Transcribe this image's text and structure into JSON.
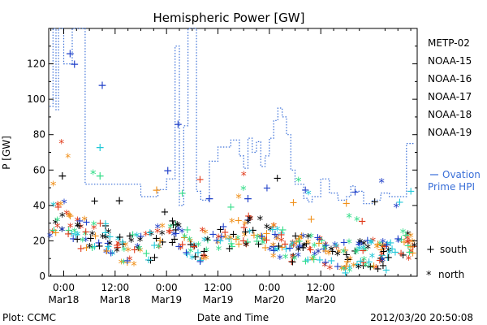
{
  "chart_data": {
    "type": "scatter",
    "title": "Hemispheric Power [GW]",
    "ylabel": "P [GW]",
    "xlabel": "Date and Time",
    "ylim": [
      0,
      140
    ],
    "xlim_hours_from_mar18": [
      -3.5,
      82.5
    ],
    "yticks": [
      0,
      20,
      40,
      60,
      80,
      100,
      120
    ],
    "xticks": [
      {
        "h": 0,
        "time": "0:00",
        "date": "Mar18"
      },
      {
        "h": 12,
        "time": "12:00",
        "date": "Mar18"
      },
      {
        "h": 24,
        "time": "0:00",
        "date": "Mar19"
      },
      {
        "h": 36,
        "time": "12:00",
        "date": "Mar19"
      },
      {
        "h": 48,
        "time": "0:00",
        "date": "Mar20"
      },
      {
        "h": 60,
        "time": "12:00",
        "date": "Mar20"
      }
    ],
    "legend_position": "right",
    "series": [
      {
        "name": "METP-02",
        "color": "#000000"
      },
      {
        "name": "NOAA-15",
        "color": "#1f3fc8"
      },
      {
        "name": "NOAA-16",
        "color": "#22c8d8"
      },
      {
        "name": "NOAA-17",
        "color": "#33dd88"
      },
      {
        "name": "NOAA-18",
        "color": "#f0901a"
      },
      {
        "name": "NOAA-19",
        "color": "#e03a1a"
      }
    ],
    "ovation": {
      "label_line1": "Ovation",
      "label_line2": "Prime HPI",
      "color": "#3a6fd8",
      "h": [
        -3.3,
        -2.5,
        -2.5,
        -1.8,
        -1.8,
        -1.2,
        -1.2,
        0,
        0,
        2,
        2,
        5,
        5,
        18,
        18,
        22,
        22,
        24,
        24,
        26,
        26,
        27,
        27,
        28,
        28,
        29,
        29,
        31,
        31,
        32,
        32,
        34,
        34,
        36,
        36,
        39,
        39,
        41,
        41,
        42,
        42,
        43,
        43,
        44,
        44,
        45,
        45,
        46,
        46,
        47,
        47,
        48,
        48,
        49,
        49,
        50,
        50,
        51,
        51,
        52,
        52,
        53,
        53,
        54,
        54,
        56,
        56,
        57,
        57,
        58,
        58,
        60,
        60,
        62,
        62,
        64,
        64,
        66,
        66,
        67,
        67,
        68,
        68,
        70,
        70,
        72,
        72,
        74,
        74,
        76,
        76,
        80,
        80,
        82
      ],
      "p": [
        96,
        96,
        140,
        140,
        94,
        94,
        140,
        140,
        120,
        120,
        140,
        140,
        52,
        52,
        45,
        45,
        49,
        49,
        55,
        55,
        130,
        130,
        40,
        40,
        85,
        85,
        140,
        140,
        48,
        48,
        43,
        43,
        65,
        65,
        73,
        73,
        77,
        77,
        68,
        68,
        61,
        61,
        78,
        78,
        70,
        70,
        76,
        76,
        62,
        62,
        68,
        68,
        78,
        78,
        88,
        88,
        95,
        95,
        90,
        90,
        80,
        80,
        60,
        60,
        52,
        52,
        44,
        44,
        42,
        42,
        45,
        45,
        55,
        55,
        47,
        47,
        43,
        43,
        45,
        45,
        51,
        51,
        48,
        48,
        41,
        41,
        43,
        43,
        47,
        47,
        45,
        45,
        75,
        75
      ]
    },
    "south_marker": "+",
    "north_marker": "*",
    "south_label": "south",
    "north_label": "north"
  },
  "footer": {
    "plot_label": "Plot: CCMC",
    "timestamp": "2012/03/20 20:50:08"
  }
}
